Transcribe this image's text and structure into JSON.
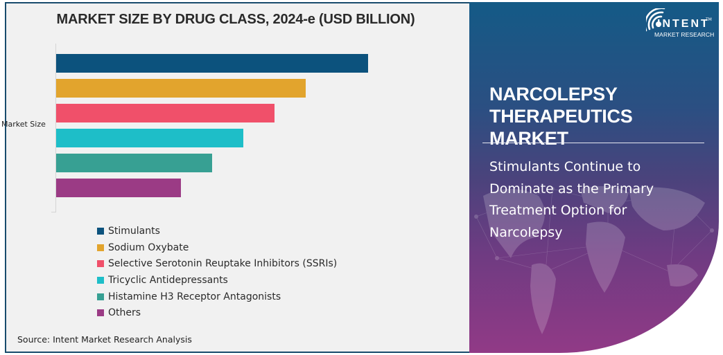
{
  "left_panel": {
    "title": "MARKET SIZE BY DRUG CLASS, 2024-e (USD BILLION)",
    "y_axis_label": "Market Size",
    "source": "Source: Intent Market Research Analysis"
  },
  "right_panel": {
    "logo": {
      "icon": "signal-wave-icon",
      "word": "INTENT",
      "tm": "TM",
      "subtitle": "MARKET RESEARCH"
    },
    "market_title": "NARCOLEPSY THERAPEUTICS MARKET",
    "headline": "Stimulants Continue to Dominate as the Primary Treatment Option for Narcolepsy"
  },
  "colors": {
    "stimulants": "#0c527d",
    "sodium_oxybate": "#e2a42d",
    "ssris": "#f0506a",
    "tricyclic": "#1ebec8",
    "h3": "#37a093",
    "others": "#9b3b85",
    "border": "#174b6c"
  },
  "legend": [
    {
      "label": "Stimulants",
      "color": "#0c527d"
    },
    {
      "label": "Sodium Oxybate",
      "color": "#e2a42d"
    },
    {
      "label": "Selective Serotonin Reuptake Inhibitors (SSRIs)",
      "color": "#f0506a"
    },
    {
      "label": "Tricyclic Antidepressants",
      "color": "#1ebec8"
    },
    {
      "label": "Histamine H3 Receptor Antagonists",
      "color": "#37a093"
    },
    {
      "label": "Others",
      "color": "#9b3b85"
    }
  ],
  "chart_data": {
    "type": "bar",
    "orientation": "horizontal",
    "title": "MARKET SIZE BY DRUG CLASS, 2024-e (USD BILLION)",
    "xlabel": "",
    "ylabel": "Market Size",
    "categories": [
      "Market Size"
    ],
    "series": [
      {
        "name": "Stimulants",
        "values": [
          10
        ],
        "color": "#0c527d"
      },
      {
        "name": "Sodium Oxybate",
        "values": [
          8
        ],
        "color": "#e2a42d"
      },
      {
        "name": "Selective Serotonin Reuptake Inhibitors (SSRIs)",
        "values": [
          7
        ],
        "color": "#f0506a"
      },
      {
        "name": "Tricyclic Antidepressants",
        "values": [
          6
        ],
        "color": "#1ebec8"
      },
      {
        "name": "Histamine H3 Receptor Antagonists",
        "values": [
          5
        ],
        "color": "#37a093"
      },
      {
        "name": "Others",
        "values": [
          4
        ],
        "color": "#9b3b85"
      }
    ],
    "values_note": "relative bar lengths (no axis ticks shown); units unlabeled",
    "grid": false,
    "legend_position": "bottom",
    "source": "Source: Intent Market Research Analysis"
  }
}
